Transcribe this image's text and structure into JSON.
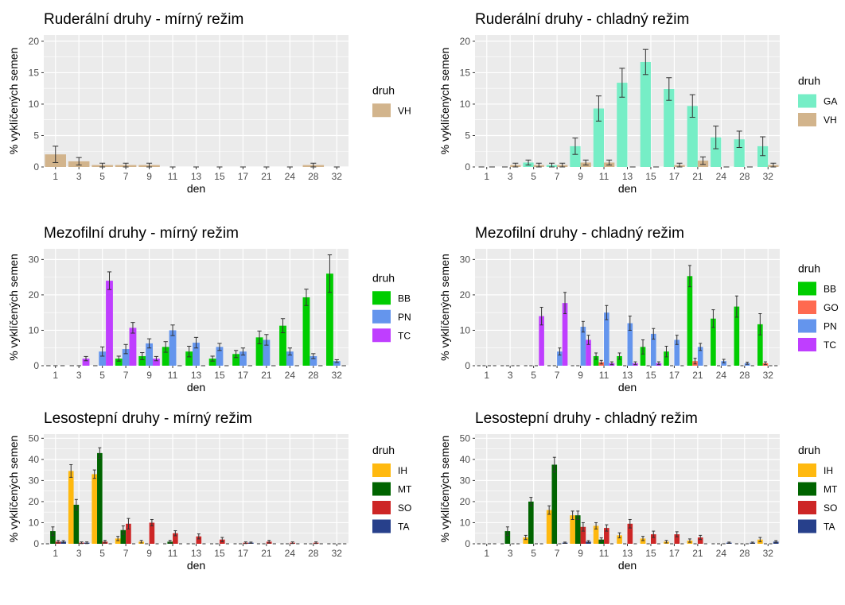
{
  "figure": {
    "background": "#ffffff",
    "panel_background": "#ebebeb",
    "grid_color": "#ffffff",
    "error_bar_color": "#333333"
  },
  "chart_data": [
    {
      "type": "bar",
      "title": "Ruderální druhy - mírný režim",
      "xlabel": "den",
      "ylabel": "% vyklíčených semen",
      "categories": [
        "1",
        "3",
        "5",
        "7",
        "9",
        "11",
        "13",
        "15",
        "17",
        "21",
        "24",
        "28",
        "32"
      ],
      "ylim": [
        0,
        21
      ],
      "yticks": [
        0,
        5,
        10,
        15,
        20
      ],
      "grid": true,
      "legend": {
        "title": "druh",
        "position": "right"
      },
      "series": [
        {
          "name": "VH",
          "color": "#d2b48c",
          "values": [
            2.0,
            0.9,
            0.3,
            0.3,
            0.3,
            0,
            0,
            0,
            0,
            0,
            0,
            0.3,
            0
          ],
          "errors": [
            1.3,
            0.6,
            0.3,
            0.3,
            0.3,
            0,
            0,
            0,
            0,
            0,
            0,
            0.3,
            0
          ]
        }
      ]
    },
    {
      "type": "bar",
      "title": "Ruderální druhy - chladný režim",
      "xlabel": "den",
      "ylabel": "% vyklíčených semen",
      "categories": [
        "1",
        "3",
        "5",
        "7",
        "9",
        "11",
        "13",
        "15",
        "17",
        "21",
        "24",
        "28",
        "32"
      ],
      "ylim": [
        0,
        21
      ],
      "yticks": [
        0,
        5,
        10,
        15,
        20
      ],
      "grid": true,
      "legend": {
        "title": "druh",
        "position": "right"
      },
      "series": [
        {
          "name": "GA",
          "color": "#76eec6",
          "values": [
            0,
            0,
            0.7,
            0.3,
            3.3,
            9.3,
            13.4,
            16.7,
            12.4,
            9.7,
            4.7,
            4.4,
            3.3
          ],
          "errors": [
            0,
            0,
            0.4,
            0.3,
            1.3,
            2.0,
            2.3,
            2.0,
            1.8,
            1.8,
            1.8,
            1.3,
            1.5
          ]
        },
        {
          "name": "VH",
          "color": "#d2b48c",
          "values": [
            0,
            0.3,
            0.3,
            0.3,
            0.7,
            0.7,
            0,
            0,
            0.3,
            1.0,
            0,
            0,
            0.3
          ],
          "errors": [
            0,
            0.3,
            0.3,
            0.3,
            0.4,
            0.4,
            0,
            0,
            0.3,
            0.6,
            0,
            0,
            0.3
          ]
        }
      ]
    },
    {
      "type": "bar",
      "title": "Mezofilní druhy - mírný režim",
      "xlabel": "den",
      "ylabel": "% vyklíčených semen",
      "categories": [
        "1",
        "3",
        "5",
        "7",
        "9",
        "11",
        "13",
        "15",
        "17",
        "21",
        "24",
        "28",
        "32"
      ],
      "ylim": [
        0,
        33
      ],
      "yticks": [
        0,
        10,
        20,
        30
      ],
      "grid": true,
      "legend": {
        "title": "druh",
        "position": "right"
      },
      "series": [
        {
          "name": "BB",
          "color": "#00cd00",
          "values": [
            0,
            0,
            0,
            2.0,
            2.7,
            5.3,
            4.0,
            2.0,
            3.3,
            8.0,
            11.3,
            19.3,
            26.0
          ],
          "errors": [
            0,
            0,
            0,
            0.7,
            1.0,
            1.5,
            1.5,
            0.7,
            1.0,
            1.8,
            2.0,
            2.3,
            5.3
          ]
        },
        {
          "name": "PN",
          "color": "#6495ed",
          "values": [
            0,
            0,
            4.0,
            4.7,
            6.3,
            10.0,
            6.5,
            5.3,
            4.0,
            7.3,
            4.0,
            2.7,
            1.3
          ],
          "errors": [
            0,
            0,
            1.3,
            1.3,
            1.3,
            1.5,
            1.5,
            1.0,
            1.0,
            1.5,
            1.0,
            0.7,
            0.4
          ]
        },
        {
          "name": "TC",
          "color": "#bf3eff",
          "values": [
            0,
            2.0,
            24.0,
            10.7,
            2.0,
            0,
            0,
            0,
            0,
            0,
            0,
            0,
            0
          ],
          "errors": [
            0,
            0.6,
            2.5,
            1.5,
            0.6,
            0,
            0,
            0,
            0,
            0,
            0,
            0,
            0
          ]
        }
      ]
    },
    {
      "type": "bar",
      "title": "Mezofilní druhy - chladný režim",
      "xlabel": "den",
      "ylabel": "% vyklíčených semen",
      "categories": [
        "1",
        "3",
        "5",
        "7",
        "9",
        "11",
        "13",
        "15",
        "17",
        "21",
        "24",
        "28",
        "32"
      ],
      "ylim": [
        0,
        33
      ],
      "yticks": [
        0,
        10,
        20,
        30
      ],
      "grid": true,
      "legend": {
        "title": "druh",
        "position": "right"
      },
      "series": [
        {
          "name": "BB",
          "color": "#00cd00",
          "values": [
            0,
            0,
            0,
            0,
            0,
            2.7,
            2.7,
            5.3,
            4.0,
            25.3,
            13.3,
            16.7,
            11.7
          ],
          "errors": [
            0,
            0,
            0,
            0,
            0,
            0.9,
            0.9,
            2.0,
            1.5,
            3.0,
            2.5,
            3.0,
            3.0
          ]
        },
        {
          "name": "GO",
          "color": "#ff6a50",
          "values": [
            0,
            0,
            0,
            0,
            0,
            1.0,
            0,
            0,
            0,
            1.3,
            0,
            0,
            0.7
          ],
          "errors": [
            0,
            0,
            0,
            0,
            0,
            0.5,
            0,
            0,
            0,
            0.8,
            0,
            0,
            0.4
          ]
        },
        {
          "name": "PN",
          "color": "#6495ed",
          "values": [
            0,
            0,
            0,
            4.0,
            11.0,
            15.0,
            12.0,
            9.0,
            7.3,
            5.3,
            1.3,
            0.7,
            0
          ],
          "errors": [
            0,
            0,
            0,
            1.0,
            1.5,
            2.0,
            2.0,
            1.5,
            1.3,
            1.0,
            0.5,
            0.3,
            0
          ]
        },
        {
          "name": "TC",
          "color": "#bf3eff",
          "values": [
            0,
            0,
            14.0,
            17.7,
            7.3,
            0.7,
            0.7,
            0.7,
            0,
            0,
            0,
            0,
            0
          ],
          "errors": [
            0,
            0,
            2.5,
            3.0,
            1.3,
            0.4,
            0.4,
            0.4,
            0,
            0,
            0,
            0,
            0
          ]
        }
      ]
    },
    {
      "type": "bar",
      "title": "Lesostepní druhy - mírný režim",
      "xlabel": "den",
      "ylabel": "% vyklíčených semen",
      "categories": [
        "1",
        "3",
        "5",
        "7",
        "9",
        "11",
        "13",
        "15",
        "17",
        "21",
        "24",
        "28",
        "32"
      ],
      "ylim": [
        0,
        52
      ],
      "yticks": [
        0,
        10,
        20,
        30,
        40,
        50
      ],
      "grid": true,
      "legend": {
        "title": "druh",
        "position": "right"
      },
      "series": [
        {
          "name": "IH",
          "color": "#ffb90f",
          "values": [
            0,
            34.5,
            33.0,
            2.5,
            1.0,
            0,
            0,
            0,
            0,
            0,
            0,
            0,
            0
          ],
          "errors": [
            0,
            3.0,
            2.0,
            1.0,
            0.6,
            0,
            0,
            0,
            0,
            0,
            0,
            0,
            0
          ]
        },
        {
          "name": "MT",
          "color": "#006400",
          "values": [
            6.0,
            18.5,
            43.0,
            6.5,
            0,
            1.0,
            0,
            0,
            0,
            0,
            0,
            0,
            0
          ],
          "errors": [
            2.0,
            2.5,
            2.5,
            2.0,
            0,
            0.6,
            0,
            0,
            0,
            0,
            0,
            0,
            0
          ]
        },
        {
          "name": "SO",
          "color": "#cd2626",
          "values": [
            1.0,
            0.5,
            1.0,
            9.5,
            10.0,
            5.0,
            3.5,
            2.0,
            0.5,
            1.0,
            0.5,
            0.5,
            0
          ],
          "errors": [
            0.6,
            0.4,
            0.6,
            2.5,
            1.5,
            1.2,
            1.2,
            1.0,
            0.4,
            0.6,
            0.4,
            0.4,
            0
          ]
        },
        {
          "name": "TA",
          "color": "#27408b",
          "values": [
            1.0,
            0.5,
            0,
            0,
            0,
            0,
            0,
            0,
            0.5,
            0,
            0,
            0,
            0
          ],
          "errors": [
            0.5,
            0.4,
            0,
            0,
            0,
            0,
            0,
            0,
            0.3,
            0,
            0,
            0,
            0
          ]
        }
      ]
    },
    {
      "type": "bar",
      "title": "Lesostepní druhy - chladný režim",
      "xlabel": "den",
      "ylabel": "% vyklíčených semen",
      "categories": [
        "1",
        "3",
        "5",
        "7",
        "9",
        "11",
        "13",
        "15",
        "17",
        "21",
        "24",
        "28",
        "32"
      ],
      "ylim": [
        0,
        52
      ],
      "yticks": [
        0,
        10,
        20,
        30,
        40,
        50
      ],
      "grid": true,
      "legend": {
        "title": "druh",
        "position": "right"
      },
      "series": [
        {
          "name": "IH",
          "color": "#ffb90f",
          "values": [
            0,
            0,
            3.0,
            16.0,
            13.5,
            8.5,
            4.0,
            2.5,
            1.0,
            1.5,
            0,
            0,
            2.0
          ],
          "errors": [
            0,
            0,
            1.0,
            2.0,
            2.0,
            1.5,
            1.2,
            1.0,
            0.6,
            0.8,
            0,
            0,
            1.0
          ]
        },
        {
          "name": "MT",
          "color": "#006400",
          "values": [
            0,
            6.0,
            20.0,
            37.5,
            13.5,
            2.0,
            0,
            0,
            0,
            0,
            0,
            0,
            0
          ],
          "errors": [
            0,
            2.0,
            2.0,
            3.5,
            2.0,
            0.8,
            0,
            0,
            0,
            0,
            0,
            0,
            0
          ]
        },
        {
          "name": "SO",
          "color": "#cd2626",
          "values": [
            0,
            0,
            0,
            0,
            8.0,
            7.5,
            9.5,
            4.5,
            4.5,
            3.0,
            0,
            0,
            0
          ],
          "errors": [
            0,
            0,
            0,
            0,
            2.0,
            1.5,
            2.0,
            1.5,
            1.2,
            1.0,
            0,
            0,
            0
          ]
        },
        {
          "name": "TA",
          "color": "#27408b",
          "values": [
            0,
            0,
            0,
            0.5,
            1.0,
            0,
            0,
            0,
            0,
            0,
            0.5,
            0.5,
            1.0
          ],
          "errors": [
            0,
            0,
            0,
            0.3,
            0.5,
            0,
            0,
            0,
            0,
            0,
            0.3,
            0.3,
            0.5
          ]
        }
      ]
    }
  ]
}
